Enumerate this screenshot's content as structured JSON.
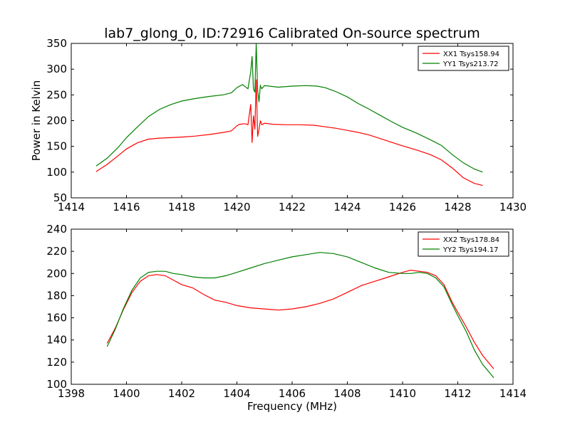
{
  "title": "lab7_glong_0, ID:72916 Calibrated On-source spectrum",
  "colors": {
    "red": "#ff0000",
    "green": "#008000",
    "frame": "#000000",
    "background": "#ffffff"
  },
  "chart_data": [
    {
      "type": "line",
      "xlabel": "",
      "ylabel": "Power in Kelvin",
      "xlim": [
        1414,
        1430
      ],
      "ylim": [
        50,
        350
      ],
      "xticks": [
        1414,
        1416,
        1418,
        1420,
        1422,
        1424,
        1426,
        1428,
        1430
      ],
      "yticks": [
        50,
        100,
        150,
        200,
        250,
        300,
        350
      ],
      "legend_position": "top-right",
      "series": [
        {
          "name": "XX1 Tsys158.94",
          "color": "#ff0000",
          "points": [
            [
              1414.9,
              101
            ],
            [
              1415.3,
              115
            ],
            [
              1415.7,
              132
            ],
            [
              1416.0,
              145
            ],
            [
              1416.4,
              157
            ],
            [
              1416.8,
              164
            ],
            [
              1417.2,
              166
            ],
            [
              1417.6,
              167
            ],
            [
              1418.0,
              168
            ],
            [
              1418.5,
              170
            ],
            [
              1419.0,
              173
            ],
            [
              1419.5,
              177
            ],
            [
              1419.8,
              180
            ],
            [
              1420.0,
              190
            ],
            [
              1420.1,
              193
            ],
            [
              1420.3,
              194
            ],
            [
              1420.4,
              192
            ],
            [
              1420.5,
              232
            ],
            [
              1420.55,
              157
            ],
            [
              1420.6,
              210
            ],
            [
              1420.65,
              183
            ],
            [
              1420.7,
              280
            ],
            [
              1420.75,
              169
            ],
            [
              1420.8,
              183
            ],
            [
              1420.85,
              200
            ],
            [
              1420.9,
              192
            ],
            [
              1421.0,
              195
            ],
            [
              1421.3,
              193
            ],
            [
              1421.8,
              192
            ],
            [
              1422.3,
              192
            ],
            [
              1422.8,
              191
            ],
            [
              1423.2,
              188
            ],
            [
              1423.6,
              185
            ],
            [
              1424.0,
              181
            ],
            [
              1424.4,
              177
            ],
            [
              1424.8,
              172
            ],
            [
              1425.2,
              165
            ],
            [
              1425.6,
              158
            ],
            [
              1426.0,
              151
            ],
            [
              1426.5,
              143
            ],
            [
              1427.0,
              134
            ],
            [
              1427.4,
              124
            ],
            [
              1427.8,
              108
            ],
            [
              1428.2,
              89
            ],
            [
              1428.6,
              78
            ],
            [
              1428.9,
              74
            ]
          ]
        },
        {
          "name": "YY1 Tsys213.72",
          "color": "#008000",
          "points": [
            [
              1414.9,
              112
            ],
            [
              1415.3,
              127
            ],
            [
              1415.7,
              148
            ],
            [
              1416.0,
              167
            ],
            [
              1416.4,
              188
            ],
            [
              1416.8,
              208
            ],
            [
              1417.2,
              222
            ],
            [
              1417.6,
              231
            ],
            [
              1418.0,
              238
            ],
            [
              1418.5,
              243
            ],
            [
              1419.0,
              247
            ],
            [
              1419.5,
              250
            ],
            [
              1419.8,
              254
            ],
            [
              1420.0,
              264
            ],
            [
              1420.2,
              270
            ],
            [
              1420.3,
              266
            ],
            [
              1420.4,
              262
            ],
            [
              1420.5,
              295
            ],
            [
              1420.55,
              325
            ],
            [
              1420.6,
              262
            ],
            [
              1420.65,
              255
            ],
            [
              1420.7,
              350
            ],
            [
              1420.75,
              260
            ],
            [
              1420.8,
              236
            ],
            [
              1420.85,
              268
            ],
            [
              1420.9,
              262
            ],
            [
              1421.0,
              268
            ],
            [
              1421.5,
              265
            ],
            [
              1422.0,
              267
            ],
            [
              1422.5,
              268
            ],
            [
              1422.9,
              267
            ],
            [
              1423.2,
              264
            ],
            [
              1423.6,
              256
            ],
            [
              1424.0,
              246
            ],
            [
              1424.4,
              233
            ],
            [
              1424.8,
              222
            ],
            [
              1425.2,
              210
            ],
            [
              1425.6,
              198
            ],
            [
              1426.0,
              187
            ],
            [
              1426.5,
              176
            ],
            [
              1427.0,
              163
            ],
            [
              1427.4,
              152
            ],
            [
              1427.8,
              134
            ],
            [
              1428.2,
              118
            ],
            [
              1428.6,
              106
            ],
            [
              1428.9,
              100
            ]
          ]
        }
      ]
    },
    {
      "type": "line",
      "xlabel": "Frequency (MHz)",
      "ylabel": "",
      "xlim": [
        1398,
        1414
      ],
      "ylim": [
        100,
        240
      ],
      "xticks": [
        1398,
        1400,
        1402,
        1404,
        1406,
        1408,
        1410,
        1412,
        1414
      ],
      "yticks": [
        100,
        120,
        140,
        160,
        180,
        200,
        220,
        240
      ],
      "legend_position": "top-right",
      "series": [
        {
          "name": "XX2 Tsys178.84",
          "color": "#ff0000",
          "points": [
            [
              1399.3,
              137
            ],
            [
              1399.6,
              151
            ],
            [
              1399.9,
              168
            ],
            [
              1400.2,
              183
            ],
            [
              1400.5,
              193
            ],
            [
              1400.8,
              198
            ],
            [
              1401.1,
              199
            ],
            [
              1401.4,
              198
            ],
            [
              1401.7,
              194
            ],
            [
              1402.0,
              190
            ],
            [
              1402.4,
              187
            ],
            [
              1402.8,
              181
            ],
            [
              1403.2,
              176
            ],
            [
              1403.6,
              174
            ],
            [
              1404.0,
              171
            ],
            [
              1404.5,
              169
            ],
            [
              1405.0,
              168
            ],
            [
              1405.5,
              167
            ],
            [
              1406.0,
              168
            ],
            [
              1406.5,
              170
            ],
            [
              1407.0,
              173
            ],
            [
              1407.5,
              177
            ],
            [
              1408.0,
              183
            ],
            [
              1408.5,
              189
            ],
            [
              1409.0,
              193
            ],
            [
              1409.5,
              197
            ],
            [
              1410.0,
              201
            ],
            [
              1410.3,
              203
            ],
            [
              1410.6,
              202
            ],
            [
              1410.9,
              201
            ],
            [
              1411.2,
              198
            ],
            [
              1411.5,
              190
            ],
            [
              1411.8,
              174
            ],
            [
              1412.0,
              165
            ],
            [
              1412.3,
              152
            ],
            [
              1412.6,
              138
            ],
            [
              1412.9,
              126
            ],
            [
              1413.3,
              114
            ]
          ]
        },
        {
          "name": "YY2 Tsys194.17",
          "color": "#008000",
          "points": [
            [
              1399.3,
              134
            ],
            [
              1399.6,
              150
            ],
            [
              1399.9,
              169
            ],
            [
              1400.2,
              185
            ],
            [
              1400.5,
              196
            ],
            [
              1400.8,
              201
            ],
            [
              1401.1,
              202
            ],
            [
              1401.4,
              202
            ],
            [
              1401.7,
              200
            ],
            [
              1402.0,
              199
            ],
            [
              1402.4,
              197
            ],
            [
              1402.8,
              196
            ],
            [
              1403.2,
              196
            ],
            [
              1403.6,
              198
            ],
            [
              1404.0,
              201
            ],
            [
              1404.5,
              205
            ],
            [
              1405.0,
              209
            ],
            [
              1405.5,
              212
            ],
            [
              1406.0,
              215
            ],
            [
              1406.5,
              217
            ],
            [
              1407.0,
              219
            ],
            [
              1407.5,
              218
            ],
            [
              1408.0,
              215
            ],
            [
              1408.5,
              210
            ],
            [
              1409.0,
              205
            ],
            [
              1409.5,
              201
            ],
            [
              1410.0,
              200
            ],
            [
              1410.3,
              200
            ],
            [
              1410.6,
              201
            ],
            [
              1410.9,
              200
            ],
            [
              1411.2,
              196
            ],
            [
              1411.5,
              188
            ],
            [
              1411.8,
              172
            ],
            [
              1412.0,
              162
            ],
            [
              1412.3,
              148
            ],
            [
              1412.6,
              131
            ],
            [
              1412.9,
              118
            ],
            [
              1413.3,
              106
            ]
          ]
        }
      ]
    }
  ]
}
